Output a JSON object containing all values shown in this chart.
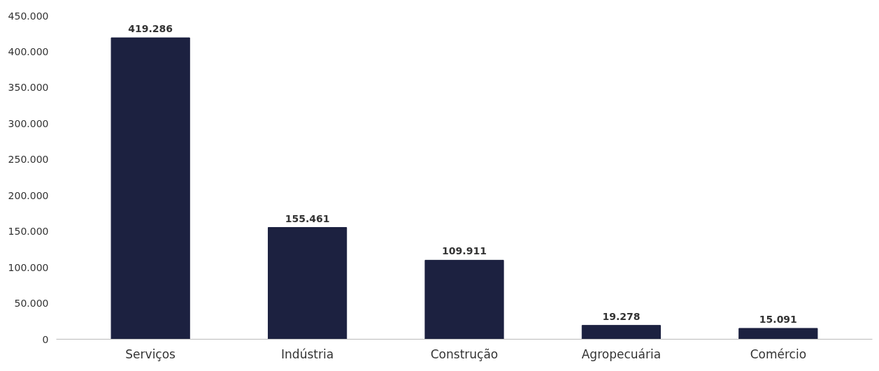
{
  "chart_data": {
    "type": "bar",
    "categories": [
      "Serviços",
      "Indústria",
      "Construção",
      "Agropecuária",
      "Comércio"
    ],
    "values": [
      419286,
      155461,
      109911,
      19278,
      15091
    ],
    "value_labels": [
      "419.286",
      "155.461",
      "109.911",
      "19.278",
      "15.091"
    ],
    "color": "#1c2140",
    "ylim": [
      0,
      450000
    ],
    "yticks": [
      {
        "value": 0,
        "label": "0"
      },
      {
        "value": 50000,
        "label": "50.000"
      },
      {
        "value": 100000,
        "label": "100.000"
      },
      {
        "value": 150000,
        "label": "150.000"
      },
      {
        "value": 200000,
        "label": "200.000"
      },
      {
        "value": 250000,
        "label": "250.000"
      },
      {
        "value": 300000,
        "label": "300.000"
      },
      {
        "value": 350000,
        "label": "350.000"
      },
      {
        "value": 400000,
        "label": "400.000"
      },
      {
        "value": 450000,
        "label": "450.000"
      }
    ],
    "grid": false
  }
}
